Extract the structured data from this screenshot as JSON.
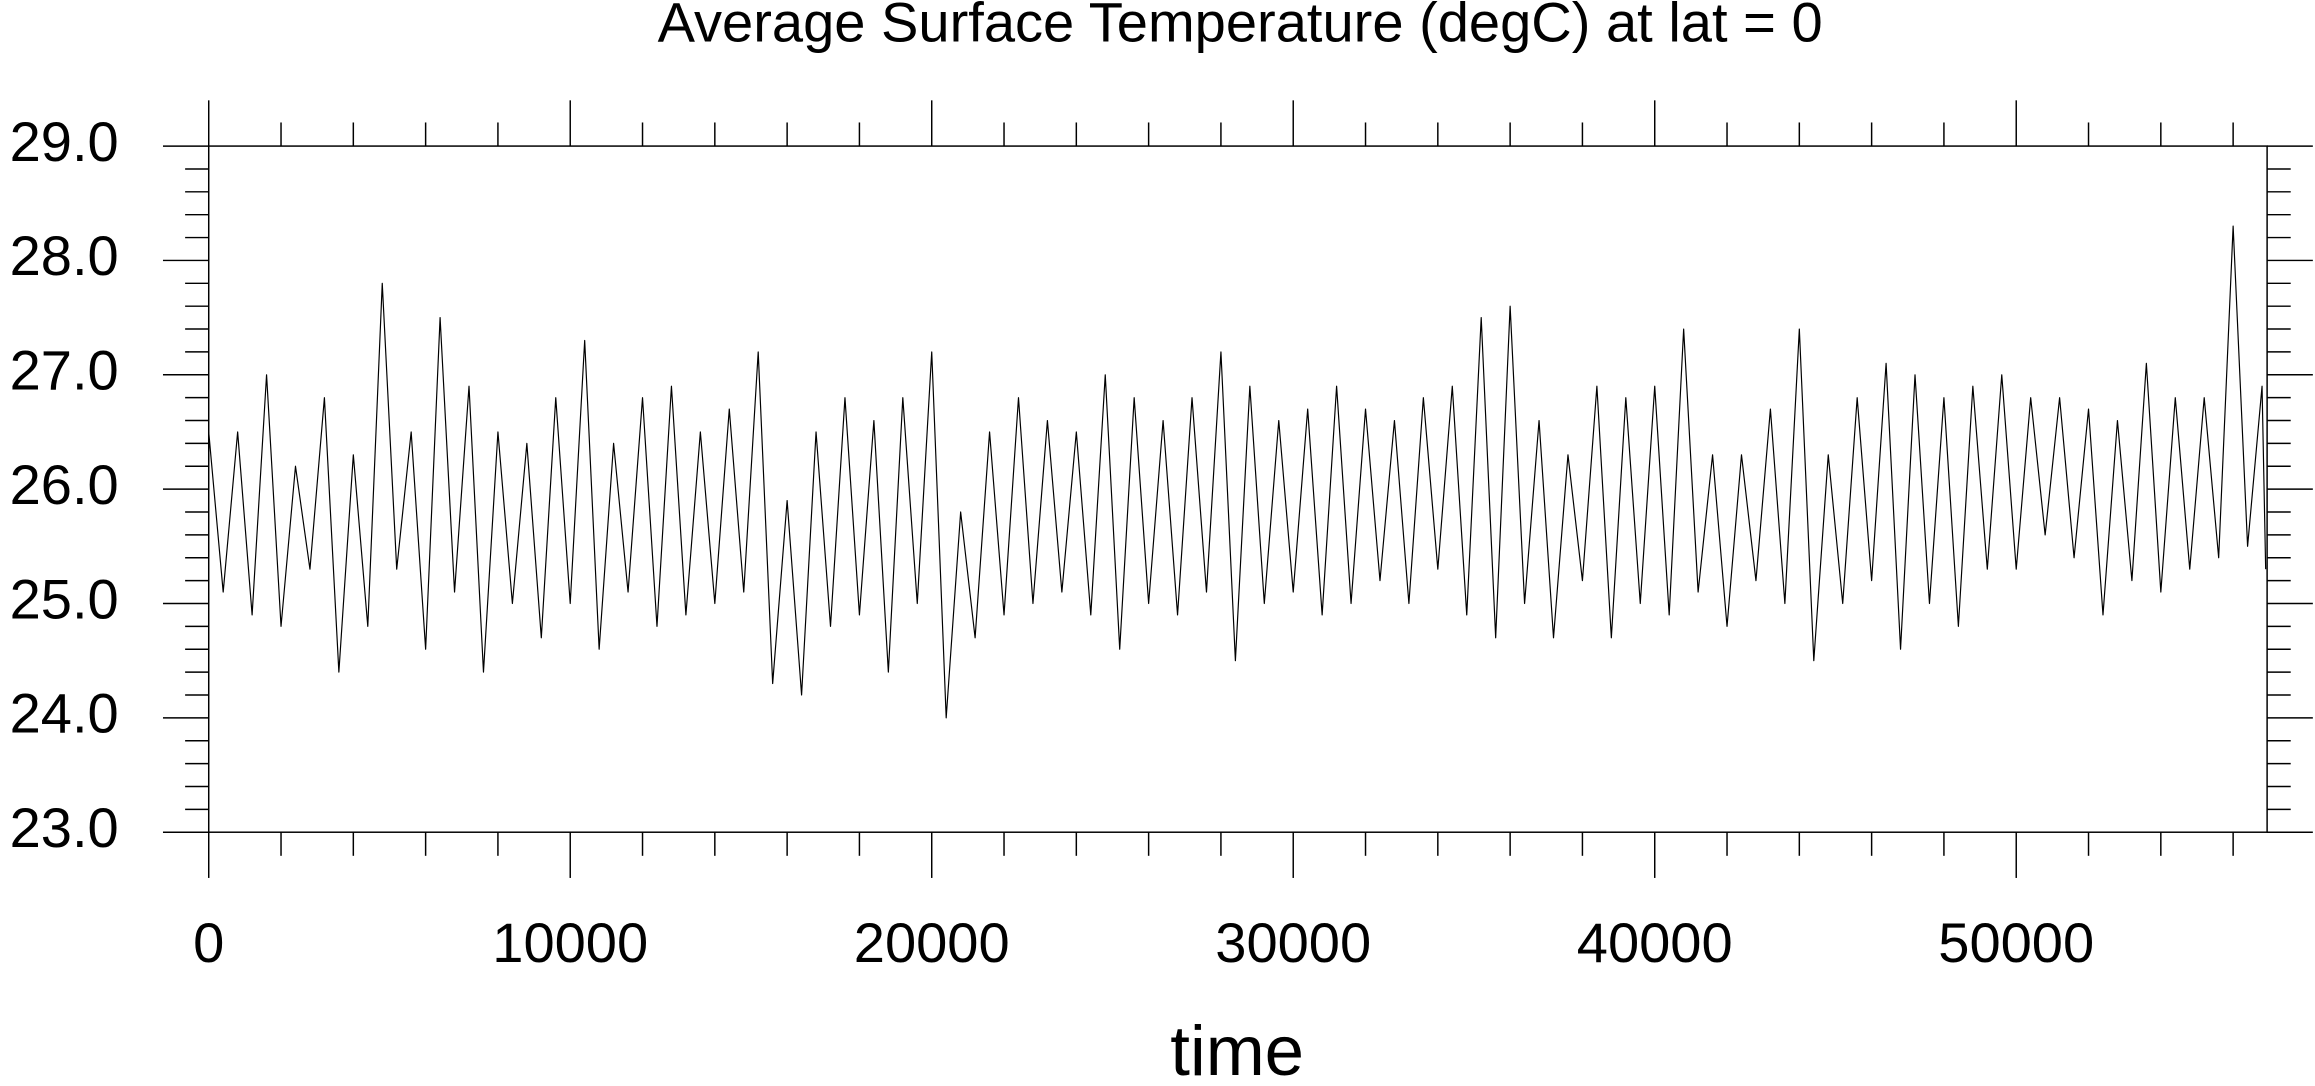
{
  "chart_data": {
    "type": "line",
    "title": "Average Surface Temperature (degC) at lat = 0",
    "xlabel": "time",
    "x": [
      0,
      400,
      800,
      1200,
      1600,
      2000,
      2400,
      2800,
      3200,
      3600,
      4000,
      4400,
      4800,
      5200,
      5600,
      6000,
      6400,
      6800,
      7200,
      7600,
      8000,
      8400,
      8800,
      9200,
      9600,
      10000,
      10400,
      10800,
      11200,
      11600,
      12000,
      12400,
      12800,
      13200,
      13600,
      14000,
      14400,
      14800,
      15200,
      15600,
      16000,
      16400,
      16800,
      17200,
      17600,
      18000,
      18400,
      18800,
      19200,
      19600,
      20000,
      20400,
      20800,
      21200,
      21600,
      22000,
      22400,
      22800,
      23200,
      23600,
      24000,
      24400,
      24800,
      25200,
      25600,
      26000,
      26400,
      26800,
      27200,
      27600,
      28000,
      28400,
      28800,
      29200,
      29600,
      30000,
      30400,
      30800,
      31200,
      31600,
      32000,
      32400,
      32800,
      33200,
      33600,
      34000,
      34400,
      34800,
      35200,
      35600,
      36000,
      36400,
      36800,
      37200,
      37600,
      38000,
      38400,
      38800,
      39200,
      39600,
      40000,
      40400,
      40800,
      41200,
      41600,
      42000,
      42400,
      42800,
      43200,
      43600,
      44000,
      44400,
      44800,
      45200,
      45600,
      46000,
      46400,
      46800,
      47200,
      47600,
      48000,
      48400,
      48800,
      49200,
      49600,
      50000,
      50400,
      50800,
      51200,
      51600,
      52000,
      52400,
      52800,
      53200,
      53600,
      54000,
      54400,
      54800,
      55200,
      55600,
      56000,
      56400,
      56800,
      56900
    ],
    "series": [
      {
        "color": "#000000",
        "values": [
          26.5,
          25.1,
          26.5,
          24.9,
          27.0,
          24.8,
          26.2,
          25.3,
          26.8,
          24.4,
          26.3,
          24.8,
          27.8,
          25.3,
          26.5,
          24.6,
          27.5,
          25.1,
          26.9,
          24.4,
          26.5,
          25.0,
          26.4,
          24.7,
          26.8,
          25.0,
          27.3,
          24.6,
          26.4,
          25.1,
          26.8,
          24.8,
          26.9,
          24.9,
          26.5,
          25.0,
          26.7,
          25.1,
          27.2,
          24.3,
          25.9,
          24.2,
          26.5,
          24.8,
          26.8,
          24.9,
          26.6,
          24.4,
          26.8,
          25.0,
          27.2,
          24.0,
          25.8,
          24.7,
          26.5,
          24.9,
          26.8,
          25.0,
          26.6,
          25.1,
          26.5,
          24.9,
          27.0,
          24.6,
          26.8,
          25.0,
          26.6,
          24.9,
          26.8,
          25.1,
          27.2,
          24.5,
          26.9,
          25.0,
          26.6,
          25.1,
          26.7,
          24.9,
          26.9,
          25.0,
          26.7,
          25.2,
          26.6,
          25.0,
          26.8,
          25.3,
          26.9,
          24.9,
          27.5,
          24.7,
          27.6,
          25.0,
          26.6,
          24.7,
          26.3,
          25.2,
          26.9,
          24.7,
          26.8,
          25.0,
          26.9,
          24.9,
          27.4,
          25.1,
          26.3,
          24.8,
          26.3,
          25.2,
          26.7,
          25.0,
          27.4,
          24.5,
          26.3,
          25.0,
          26.8,
          25.2,
          27.1,
          24.6,
          27.0,
          25.0,
          26.8,
          24.8,
          26.9,
          25.3,
          27.0,
          25.3,
          26.8,
          25.6,
          26.8,
          25.4,
          26.7,
          24.9,
          26.6,
          25.2,
          27.1,
          25.1,
          26.8,
          25.3,
          26.8,
          25.4,
          28.3,
          25.5,
          26.9,
          25.3
        ]
      }
    ],
    "xlim": [
      0,
      56940
    ],
    "ylim": [
      23,
      29
    ],
    "xticks": [
      0,
      10000,
      20000,
      30000,
      40000,
      50000
    ],
    "xminorticks": [
      2000,
      4000,
      6000,
      8000,
      12000,
      14000,
      16000,
      18000,
      22000,
      24000,
      26000,
      28000,
      32000,
      34000,
      36000,
      38000,
      42000,
      44000,
      46000,
      48000,
      52000,
      54000,
      56000
    ],
    "yticks": [
      {
        "value": 23,
        "label": "23.0"
      },
      {
        "value": 24,
        "label": "24.0"
      },
      {
        "value": 25,
        "label": "25.0"
      },
      {
        "value": 26,
        "label": "26.0"
      },
      {
        "value": 27,
        "label": "27.0"
      },
      {
        "value": 28,
        "label": "28.0"
      },
      {
        "value": 29,
        "label": "29.0"
      }
    ],
    "yminorticks": [
      23.2,
      23.4,
      23.6,
      23.8,
      24.2,
      24.4,
      24.6,
      24.8,
      25.2,
      25.4,
      25.6,
      25.8,
      26.2,
      26.4,
      26.6,
      26.8,
      27.2,
      27.4,
      27.6,
      27.8,
      28.2,
      28.4,
      28.6,
      28.8
    ],
    "grid": false
  }
}
